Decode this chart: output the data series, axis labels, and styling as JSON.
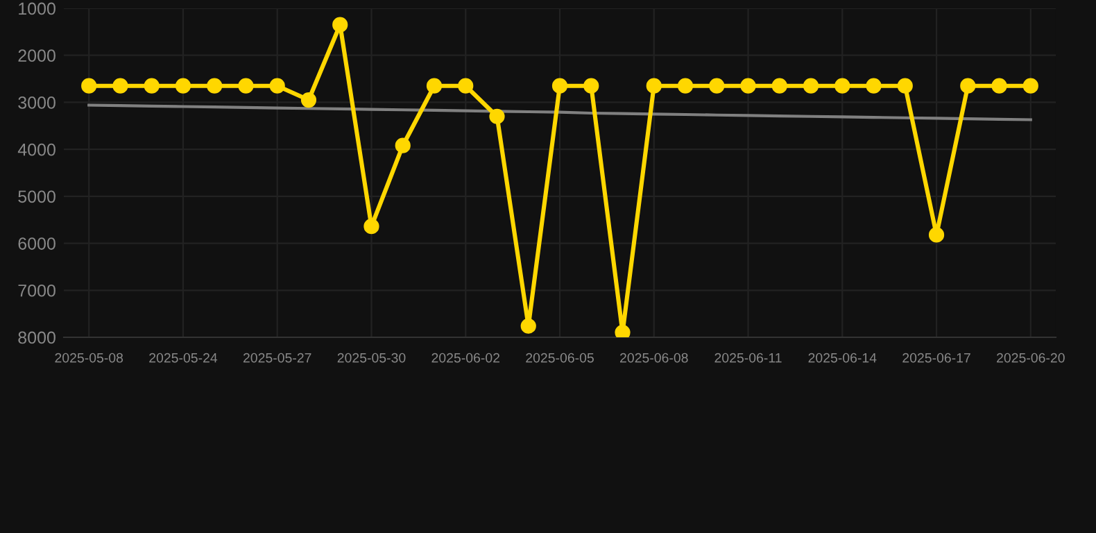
{
  "chart_data": {
    "type": "line",
    "categories": [
      "2025-05-08",
      null,
      null,
      "2025-05-24",
      null,
      null,
      "2025-05-27",
      null,
      null,
      "2025-05-30",
      null,
      null,
      "2025-06-02",
      null,
      null,
      "2025-06-05",
      null,
      null,
      "2025-06-08",
      null,
      null,
      "2025-06-11",
      null,
      null,
      "2025-06-14",
      null,
      null,
      "2025-06-17",
      null,
      null,
      "2025-06-20"
    ],
    "series": [
      {
        "type": "line",
        "color": "#808080",
        "marker": "none",
        "values": [
          3060,
          3070,
          3080,
          3090,
          3100,
          3110,
          3120,
          3130,
          3140,
          3150,
          3160,
          3170,
          3180,
          3190,
          3200,
          3210,
          3230,
          3240,
          3250,
          3260,
          3270,
          3280,
          3290,
          3300,
          3310,
          3320,
          3330,
          3340,
          3350,
          3360,
          3370
        ]
      },
      {
        "color": "#ffd700",
        "marker": "circle",
        "values": [
          2650,
          2650,
          2650,
          2650,
          2650,
          2650,
          2650,
          2950,
          1350,
          5640,
          3920,
          2650,
          2650,
          3300,
          7760,
          2650,
          2650,
          7900,
          2650,
          2650,
          2650,
          2650,
          2650,
          2650,
          2650,
          2650,
          2650,
          5820,
          2650,
          2650,
          2650
        ]
      }
    ],
    "ylim": [
      8000,
      1000
    ],
    "yticks": [
      1000,
      2000,
      3000,
      4000,
      5000,
      6000,
      7000,
      8000
    ],
    "grid": true
  }
}
